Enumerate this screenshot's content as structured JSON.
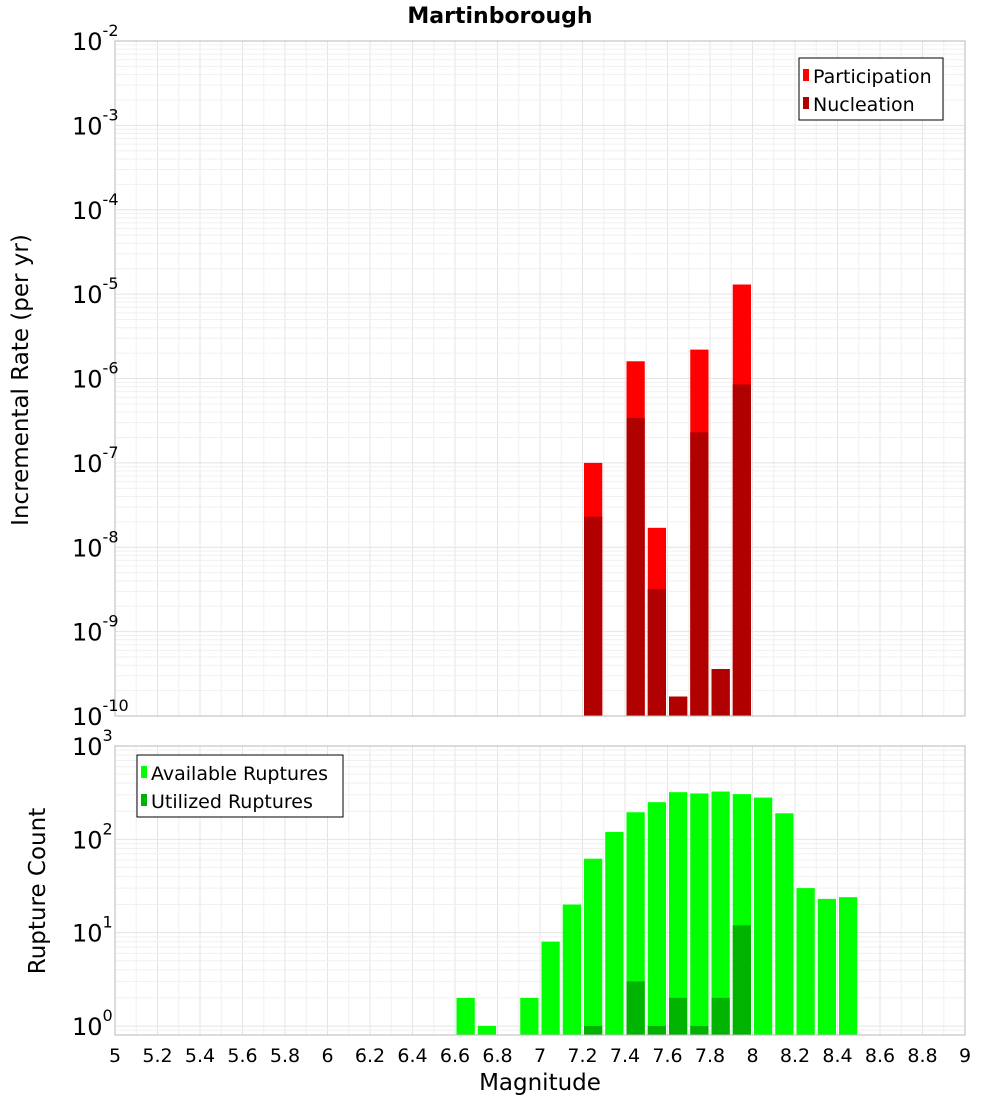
{
  "chart_data": [
    {
      "type": "bar",
      "title": "Martinborough",
      "xlabel": "",
      "ylabel": "Incremental Rate (per yr)",
      "y_scale": "log",
      "ylim": [
        1e-10,
        0.01
      ],
      "xlim": [
        5,
        9
      ],
      "grid": true,
      "legend_position": "top-right",
      "bar_width": 0.1,
      "y_ticks": [
        {
          "value": 0.01,
          "base": "10",
          "exp": "-2"
        },
        {
          "value": 0.001,
          "base": "10",
          "exp": "-3"
        },
        {
          "value": 0.0001,
          "base": "10",
          "exp": "-4"
        },
        {
          "value": 1e-05,
          "base": "10",
          "exp": "-5"
        },
        {
          "value": 1e-06,
          "base": "10",
          "exp": "-6"
        },
        {
          "value": 1e-07,
          "base": "10",
          "exp": "-7"
        },
        {
          "value": 1e-08,
          "base": "10",
          "exp": "-8"
        },
        {
          "value": 1e-09,
          "base": "10",
          "exp": "-9"
        },
        {
          "value": 1e-10,
          "base": "10",
          "exp": "-10"
        }
      ],
      "series": [
        {
          "name": "Participation",
          "color": "#ff0000",
          "points": [
            {
              "x": 7.25,
              "y": 1e-07
            },
            {
              "x": 7.45,
              "y": 1.6e-06
            },
            {
              "x": 7.55,
              "y": 1.7e-08
            },
            {
              "x": 7.65,
              "y": 1.7e-10
            },
            {
              "x": 7.75,
              "y": 2.2e-06
            },
            {
              "x": 7.85,
              "y": 3.6e-10
            },
            {
              "x": 7.95,
              "y": 1.3e-05
            }
          ]
        },
        {
          "name": "Nucleation",
          "color": "#b00000",
          "points": [
            {
              "x": 7.25,
              "y": 2.3e-08
            },
            {
              "x": 7.45,
              "y": 3.4e-07
            },
            {
              "x": 7.55,
              "y": 3.2e-09
            },
            {
              "x": 7.65,
              "y": 1.7e-10
            },
            {
              "x": 7.75,
              "y": 2.3e-07
            },
            {
              "x": 7.85,
              "y": 3.6e-10
            },
            {
              "x": 7.95,
              "y": 8.5e-07
            }
          ]
        }
      ]
    },
    {
      "type": "bar",
      "title": "",
      "xlabel": "Magnitude",
      "ylabel": "Rupture Count",
      "y_scale": "log",
      "ylim": [
        0.8,
        1000
      ],
      "xlim": [
        5,
        9
      ],
      "grid": true,
      "legend_position": "top-left",
      "bar_width": 0.1,
      "x_ticks": [
        "5",
        "5.2",
        "5.4",
        "5.6",
        "5.8",
        "6",
        "6.2",
        "6.4",
        "6.6",
        "6.8",
        "7",
        "7.2",
        "7.4",
        "7.6",
        "7.8",
        "8",
        "8.2",
        "8.4",
        "8.6",
        "8.8",
        "9"
      ],
      "y_ticks": [
        {
          "value": 1000,
          "base": "10",
          "exp": "3"
        },
        {
          "value": 100,
          "base": "10",
          "exp": "2"
        },
        {
          "value": 10,
          "base": "10",
          "exp": "1"
        },
        {
          "value": 1,
          "base": "10",
          "exp": "0"
        }
      ],
      "series": [
        {
          "name": "Available Ruptures",
          "color": "#00ff00",
          "points": [
            {
              "x": 6.65,
              "y": 2
            },
            {
              "x": 6.75,
              "y": 1
            },
            {
              "x": 6.95,
              "y": 2
            },
            {
              "x": 7.05,
              "y": 8
            },
            {
              "x": 7.15,
              "y": 20
            },
            {
              "x": 7.25,
              "y": 62
            },
            {
              "x": 7.35,
              "y": 120
            },
            {
              "x": 7.45,
              "y": 195
            },
            {
              "x": 7.55,
              "y": 250
            },
            {
              "x": 7.65,
              "y": 320
            },
            {
              "x": 7.75,
              "y": 310
            },
            {
              "x": 7.85,
              "y": 325
            },
            {
              "x": 7.95,
              "y": 305
            },
            {
              "x": 8.05,
              "y": 280
            },
            {
              "x": 8.15,
              "y": 190
            },
            {
              "x": 8.25,
              "y": 30
            },
            {
              "x": 8.35,
              "y": 23
            },
            {
              "x": 8.45,
              "y": 24
            }
          ]
        },
        {
          "name": "Utilized Ruptures",
          "color": "#00b300",
          "points": [
            {
              "x": 7.25,
              "y": 1
            },
            {
              "x": 7.45,
              "y": 3
            },
            {
              "x": 7.55,
              "y": 1
            },
            {
              "x": 7.65,
              "y": 2
            },
            {
              "x": 7.75,
              "y": 1
            },
            {
              "x": 7.85,
              "y": 2
            },
            {
              "x": 7.95,
              "y": 12
            }
          ]
        }
      ]
    }
  ]
}
